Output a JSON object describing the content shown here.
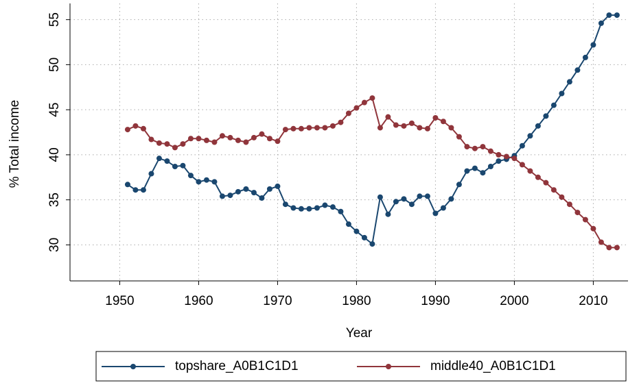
{
  "chart_data": {
    "type": "line",
    "xlabel": "Year",
    "ylabel": "% Total income",
    "x": [
      1951,
      1952,
      1953,
      1954,
      1955,
      1956,
      1957,
      1958,
      1959,
      1960,
      1961,
      1962,
      1963,
      1964,
      1965,
      1966,
      1967,
      1968,
      1969,
      1970,
      1971,
      1972,
      1973,
      1974,
      1975,
      1976,
      1977,
      1978,
      1979,
      1980,
      1981,
      1982,
      1983,
      1984,
      1985,
      1986,
      1987,
      1988,
      1989,
      1990,
      1991,
      1992,
      1993,
      1994,
      1995,
      1996,
      1997,
      1998,
      1999,
      2000,
      2001,
      2002,
      2003,
      2004,
      2005,
      2006,
      2007,
      2008,
      2009,
      2010,
      2011,
      2012,
      2013
    ],
    "series": [
      {
        "name": "topshare_A0B1C1D1",
        "color": "#1a476f",
        "values": [
          36.7,
          36.1,
          36.1,
          37.9,
          39.6,
          39.3,
          38.7,
          38.8,
          37.7,
          37.0,
          37.2,
          37.0,
          35.4,
          35.5,
          35.9,
          36.2,
          35.8,
          35.2,
          36.2,
          36.5,
          34.5,
          34.1,
          34.0,
          34.0,
          34.1,
          34.4,
          34.2,
          33.7,
          32.3,
          31.5,
          30.8,
          30.1,
          35.3,
          33.4,
          34.8,
          35.1,
          34.5,
          35.4,
          35.4,
          33.5,
          34.1,
          35.1,
          36.7,
          38.2,
          38.5,
          38.0,
          38.7,
          39.3,
          39.5,
          39.9,
          41.0,
          42.1,
          43.2,
          44.3,
          45.5,
          46.8,
          48.1,
          49.4,
          50.8,
          52.2,
          54.6,
          55.5,
          55.5
        ]
      },
      {
        "name": "middle40_A0B1C1D1",
        "color": "#90353b",
        "values": [
          42.8,
          43.2,
          42.9,
          41.7,
          41.3,
          41.2,
          40.8,
          41.2,
          41.8,
          41.8,
          41.6,
          41.4,
          42.1,
          41.9,
          41.6,
          41.4,
          41.9,
          42.3,
          41.8,
          41.5,
          42.8,
          42.9,
          42.9,
          43.0,
          43.0,
          43.0,
          43.2,
          43.6,
          44.6,
          45.2,
          45.8,
          46.3,
          43.0,
          44.2,
          43.3,
          43.2,
          43.5,
          43.0,
          42.9,
          44.1,
          43.7,
          43.0,
          42.0,
          40.9,
          40.7,
          40.9,
          40.4,
          40.0,
          39.8,
          39.6,
          38.9,
          38.2,
          37.5,
          36.9,
          36.1,
          35.3,
          34.5,
          33.6,
          32.8,
          31.8,
          30.3,
          29.7,
          29.7
        ]
      }
    ],
    "xlim": [
      1943.7,
      2014.4
    ],
    "xticks": [
      1950,
      1960,
      1970,
      1980,
      1990,
      2000,
      2010
    ],
    "ylim": [
      26,
      56.8
    ],
    "yticks": [
      30,
      35,
      40,
      45,
      50,
      55
    ],
    "grid": true,
    "legend": "bottom"
  }
}
